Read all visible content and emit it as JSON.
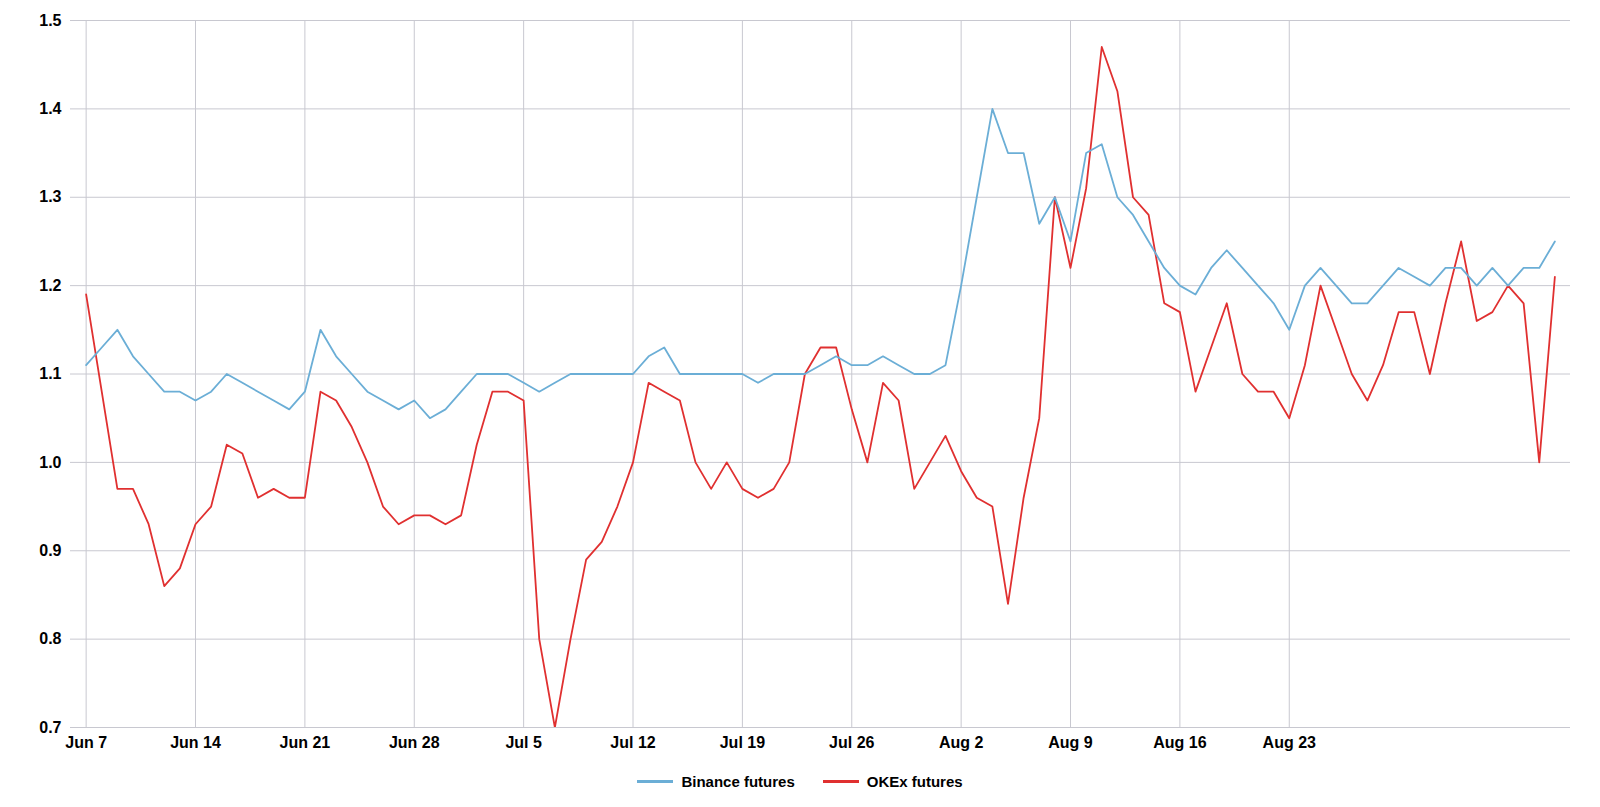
{
  "chart_data": {
    "type": "line",
    "categories": [
      "Jun 7",
      null,
      null,
      null,
      null,
      null,
      null,
      "Jun 14",
      null,
      null,
      null,
      null,
      null,
      null,
      "Jun 21",
      null,
      null,
      null,
      null,
      null,
      null,
      "Jun 28",
      null,
      null,
      null,
      null,
      null,
      null,
      "Jul 5",
      null,
      null,
      null,
      null,
      null,
      null,
      "Jul 12",
      null,
      null,
      null,
      null,
      null,
      null,
      "Jul 19",
      null,
      null,
      null,
      null,
      null,
      null,
      "Jul 26",
      null,
      null,
      null,
      null,
      null,
      null,
      "Aug 2",
      null,
      null,
      null,
      null,
      null,
      null,
      "Aug 9",
      null,
      null,
      null,
      null,
      null,
      null,
      "Aug 16",
      null,
      null,
      null,
      null,
      null,
      null,
      "Aug 23",
      null,
      null,
      null,
      null,
      null,
      null,
      null,
      null,
      null,
      null,
      null,
      null,
      null,
      null,
      null,
      null,
      null
    ],
    "series": [
      {
        "name": "Binance futures",
        "color": "#6baed6",
        "values": [
          1.11,
          1.13,
          1.15,
          1.12,
          1.1,
          1.08,
          1.08,
          1.07,
          1.08,
          1.1,
          1.09,
          1.08,
          1.07,
          1.06,
          1.08,
          1.15,
          1.12,
          1.1,
          1.08,
          1.07,
          1.06,
          1.07,
          1.05,
          1.06,
          1.08,
          1.1,
          1.1,
          1.1,
          1.09,
          1.08,
          1.09,
          1.1,
          1.1,
          1.1,
          1.1,
          1.1,
          1.12,
          1.13,
          1.1,
          1.1,
          1.1,
          1.1,
          1.1,
          1.09,
          1.1,
          1.1,
          1.1,
          1.11,
          1.12,
          1.11,
          1.11,
          1.12,
          1.11,
          1.1,
          1.1,
          1.11,
          1.2,
          1.3,
          1.4,
          1.35,
          1.35,
          1.27,
          1.3,
          1.25,
          1.35,
          1.36,
          1.3,
          1.28,
          1.25,
          1.22,
          1.2,
          1.19,
          1.22,
          1.24,
          1.22,
          1.2,
          1.18,
          1.15,
          1.2,
          1.22,
          1.2,
          1.18,
          1.18,
          1.2,
          1.22,
          1.21,
          1.2,
          1.22,
          1.22,
          1.2,
          1.22,
          1.2,
          1.22,
          1.22,
          1.25
        ]
      },
      {
        "name": "OKEx futures",
        "color": "#e03030",
        "values": [
          1.19,
          1.08,
          0.97,
          0.97,
          0.93,
          0.86,
          0.88,
          0.93,
          0.95,
          1.02,
          1.01,
          0.96,
          0.97,
          0.96,
          0.96,
          1.08,
          1.07,
          1.04,
          1.0,
          0.95,
          0.93,
          0.94,
          0.94,
          0.93,
          0.94,
          1.02,
          1.08,
          1.08,
          1.07,
          0.8,
          0.7,
          0.8,
          0.89,
          0.91,
          0.95,
          1.0,
          1.09,
          1.08,
          1.07,
          1.0,
          0.97,
          1.0,
          0.97,
          0.96,
          0.97,
          1.0,
          1.1,
          1.13,
          1.13,
          1.06,
          1.0,
          1.09,
          1.07,
          0.97,
          1.0,
          1.03,
          0.99,
          0.96,
          0.95,
          0.84,
          0.96,
          1.05,
          1.3,
          1.22,
          1.31,
          1.47,
          1.42,
          1.3,
          1.28,
          1.18,
          1.17,
          1.08,
          1.13,
          1.18,
          1.1,
          1.08,
          1.08,
          1.05,
          1.11,
          1.2,
          1.15,
          1.1,
          1.07,
          1.11,
          1.17,
          1.17,
          1.1,
          1.18,
          1.25,
          1.16,
          1.17,
          1.2,
          1.18,
          1.0,
          1.21
        ]
      }
    ],
    "ylim": [
      0.7,
      1.5
    ],
    "yticks": [
      0.7,
      0.8,
      0.9,
      {
        "value": 1.0,
        "label": "1.0"
      },
      1.1,
      1.2,
      1.3,
      1.4,
      1.5
    ],
    "grid": true,
    "legend": "bottom"
  }
}
